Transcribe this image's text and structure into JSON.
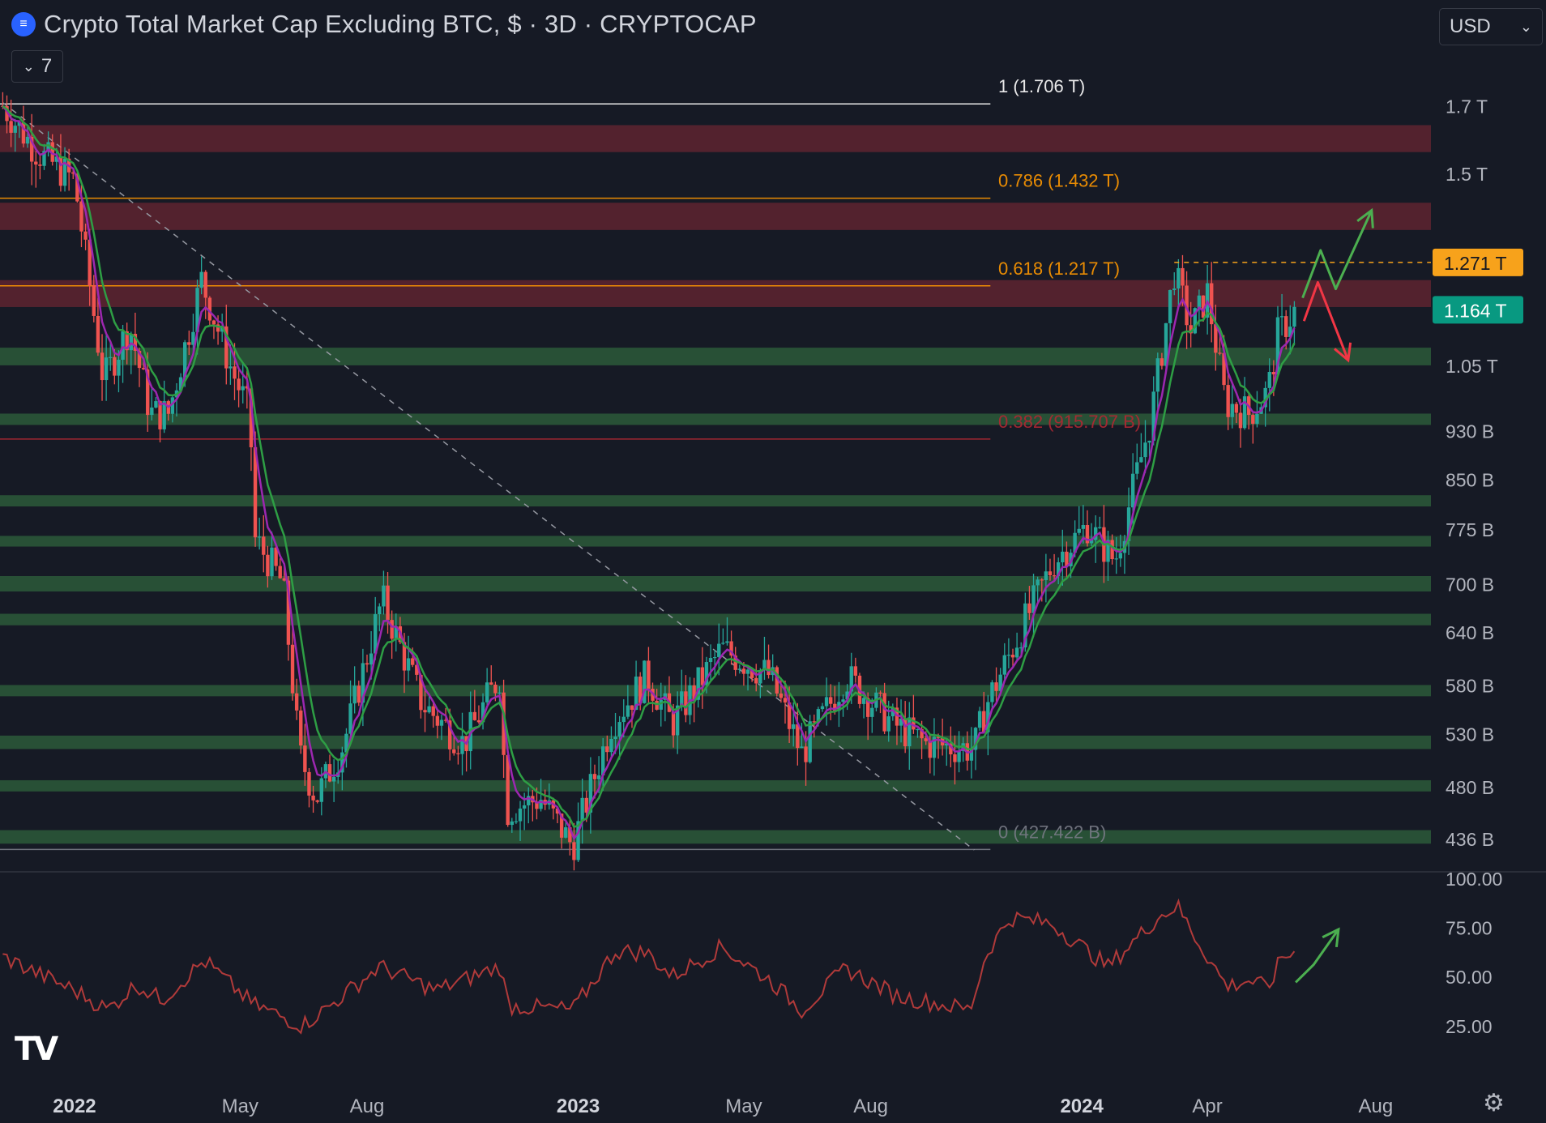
{
  "header": {
    "title": "Crypto Total Market Cap Excluding BTC, $ · 3D · CRYPTOCAP",
    "logo_icon": "crypto-coin-icon",
    "indicator_toggle": "7",
    "currency": "USD"
  },
  "colors": {
    "background": "#161a25",
    "up": "#26a69a",
    "down": "#ef5350",
    "price_tag_current": "#089981",
    "price_tag_level": "#f7a21b",
    "support_zone": "#2b5a3a",
    "resistance_zone": "#5e2530",
    "ema_fast": "#9c27b0",
    "ema_slow": "#2e9e44",
    "rsi": "#b03a3a"
  },
  "chart_data": [
    {
      "type": "candlestick",
      "title": "Crypto Total Market Cap Excluding BTC",
      "interval": "3D",
      "y_scale": "log",
      "ylim": [
        420000000000,
        1780000000000
      ],
      "y_ticks": [
        {
          "label": "1.7 T",
          "value": 1700000000000
        },
        {
          "label": "1.5 T",
          "value": 1500000000000
        },
        {
          "label": "1.05 T",
          "value": 1050000000000
        },
        {
          "label": "930 B",
          "value": 930000000000
        },
        {
          "label": "850 B",
          "value": 850000000000
        },
        {
          "label": "775 B",
          "value": 775000000000
        },
        {
          "label": "700 B",
          "value": 700000000000
        },
        {
          "label": "640 B",
          "value": 640000000000
        },
        {
          "label": "580 B",
          "value": 580000000000
        },
        {
          "label": "530 B",
          "value": 530000000000
        },
        {
          "label": "480 B",
          "value": 480000000000
        },
        {
          "label": "436 B",
          "value": 436000000000
        }
      ],
      "x_ticks": [
        {
          "label": "2022",
          "date": "2022-01-01",
          "major": true
        },
        {
          "label": "May",
          "date": "2022-05-01"
        },
        {
          "label": "Aug",
          "date": "2022-08-01"
        },
        {
          "label": "2023",
          "date": "2023-01-01",
          "major": true
        },
        {
          "label": "May",
          "date": "2023-05-01"
        },
        {
          "label": "Aug",
          "date": "2023-08-01"
        },
        {
          "label": "2024",
          "date": "2024-01-01",
          "major": true
        },
        {
          "label": "Apr",
          "date": "2024-04-01"
        },
        {
          "label": "Aug",
          "date": "2024-08-01"
        }
      ],
      "xlim": [
        "2021-11-08",
        "2024-09-10"
      ],
      "price_path": [
        {
          "date": "2021-11-10",
          "value": 1700000000000
        },
        {
          "date": "2021-12-05",
          "value": 1560000000000
        },
        {
          "date": "2022-01-01",
          "value": 1480000000000
        },
        {
          "date": "2022-01-22",
          "value": 1020000000000
        },
        {
          "date": "2022-02-10",
          "value": 1130000000000
        },
        {
          "date": "2022-02-25",
          "value": 960000000000
        },
        {
          "date": "2022-03-10",
          "value": 960000000000
        },
        {
          "date": "2022-04-03",
          "value": 1230000000000
        },
        {
          "date": "2022-04-25",
          "value": 1040000000000
        },
        {
          "date": "2022-05-08",
          "value": 960000000000
        },
        {
          "date": "2022-05-12",
          "value": 760000000000
        },
        {
          "date": "2022-06-01",
          "value": 700000000000
        },
        {
          "date": "2022-06-13",
          "value": 510000000000
        },
        {
          "date": "2022-06-25",
          "value": 470000000000
        },
        {
          "date": "2022-07-15",
          "value": 520000000000
        },
        {
          "date": "2022-08-12",
          "value": 680000000000
        },
        {
          "date": "2022-09-10",
          "value": 560000000000
        },
        {
          "date": "2022-10-10",
          "value": 520000000000
        },
        {
          "date": "2022-11-05",
          "value": 590000000000
        },
        {
          "date": "2022-11-10",
          "value": 460000000000
        },
        {
          "date": "2022-12-05",
          "value": 470000000000
        },
        {
          "date": "2022-12-28",
          "value": 430000000000
        },
        {
          "date": "2023-01-25",
          "value": 540000000000
        },
        {
          "date": "2023-02-20",
          "value": 590000000000
        },
        {
          "date": "2023-03-10",
          "value": 540000000000
        },
        {
          "date": "2023-04-15",
          "value": 620000000000
        },
        {
          "date": "2023-05-20",
          "value": 590000000000
        },
        {
          "date": "2023-06-12",
          "value": 510000000000
        },
        {
          "date": "2023-07-14",
          "value": 590000000000
        },
        {
          "date": "2023-08-17",
          "value": 540000000000
        },
        {
          "date": "2023-09-10",
          "value": 520000000000
        },
        {
          "date": "2023-10-15",
          "value": 515000000000
        },
        {
          "date": "2023-10-24",
          "value": 560000000000
        },
        {
          "date": "2023-11-20",
          "value": 650000000000
        },
        {
          "date": "2023-12-12",
          "value": 730000000000
        },
        {
          "date": "2024-01-05",
          "value": 780000000000
        },
        {
          "date": "2024-01-25",
          "value": 730000000000
        },
        {
          "date": "2024-02-20",
          "value": 950000000000
        },
        {
          "date": "2024-03-08",
          "value": 1250000000000
        },
        {
          "date": "2024-03-20",
          "value": 1120000000000
        },
        {
          "date": "2024-04-01",
          "value": 1200000000000
        },
        {
          "date": "2024-04-14",
          "value": 980000000000
        },
        {
          "date": "2024-05-01",
          "value": 960000000000
        },
        {
          "date": "2024-05-15",
          "value": 1000000000000
        },
        {
          "date": "2024-05-22",
          "value": 1110000000000
        },
        {
          "date": "2024-06-04",
          "value": 1164000000000
        }
      ],
      "moving_averages": [
        "ema_fast",
        "ema_slow"
      ],
      "fibonacci": [
        {
          "label": "1 (1.706 T)",
          "value": 1706000000000,
          "color": "#ffffff"
        },
        {
          "label": "0.786 (1.432 T)",
          "value": 1432000000000,
          "color": "#ff9800"
        },
        {
          "label": "0.618 (1.217 T)",
          "value": 1217000000000,
          "color": "#ff9800"
        },
        {
          "label": "0.382 (915.707 B)",
          "value": 915707000000,
          "color": "#b22833"
        },
        {
          "label": "0 (427.422 B)",
          "value": 427422000000,
          "color": "#787b86"
        }
      ],
      "fib_range": {
        "start": "2021-11-08",
        "end": "2023-10-15"
      },
      "resistance_zones": [
        [
          1560000000000,
          1640000000000
        ],
        [
          1350000000000,
          1420000000000
        ],
        [
          1170000000000,
          1230000000000
        ]
      ],
      "support_zones": [
        [
          1050000000000,
          1085000000000
        ],
        [
          940000000000,
          960000000000
        ],
        [
          808000000000,
          825000000000
        ],
        [
          750000000000,
          765000000000
        ],
        [
          690000000000,
          710000000000
        ],
        [
          648000000000,
          662000000000
        ],
        [
          568000000000,
          580000000000
        ],
        [
          515000000000,
          528000000000
        ],
        [
          476000000000,
          486000000000
        ],
        [
          432000000000,
          443000000000
        ]
      ],
      "trendline": {
        "from": {
          "date": "2021-11-10",
          "value": 1710000000000
        },
        "to": {
          "date": "2023-10-15",
          "value": 427000000000
        }
      },
      "price_tags": [
        {
          "label": "1.271 T",
          "value": 1271000000000,
          "kind": "level",
          "from_date": "2024-03-08"
        },
        {
          "label": "1.164 T",
          "value": 1164000000000,
          "kind": "current"
        }
      ],
      "projection": {
        "bullish": [
          {
            "date": "2024-06-09",
            "value": 1190000000000
          },
          {
            "date": "2024-06-22",
            "value": 1300000000000
          },
          {
            "date": "2024-07-03",
            "value": 1210000000000
          },
          {
            "date": "2024-07-29",
            "value": 1400000000000
          }
        ],
        "bearish": [
          {
            "date": "2024-06-10",
            "value": 1140000000000
          },
          {
            "date": "2024-06-20",
            "value": 1225000000000
          },
          {
            "date": "2024-07-12",
            "value": 1060000000000
          }
        ]
      }
    },
    {
      "type": "line",
      "indicator": "RSI",
      "ylim": [
        15,
        100
      ],
      "y_ticks": [
        {
          "label": "100.00",
          "value": 100
        },
        {
          "label": "75.00",
          "value": 75
        },
        {
          "label": "50.00",
          "value": 50
        },
        {
          "label": "25.00",
          "value": 25
        }
      ],
      "points": [
        {
          "date": "2021-11-10",
          "value": 60
        },
        {
          "date": "2021-12-10",
          "value": 50
        },
        {
          "date": "2022-01-01",
          "value": 43
        },
        {
          "date": "2022-01-25",
          "value": 33
        },
        {
          "date": "2022-02-15",
          "value": 46
        },
        {
          "date": "2022-03-05",
          "value": 38
        },
        {
          "date": "2022-04-05",
          "value": 58
        },
        {
          "date": "2022-05-10",
          "value": 36
        },
        {
          "date": "2022-06-15",
          "value": 25
        },
        {
          "date": "2022-07-05",
          "value": 35
        },
        {
          "date": "2022-08-10",
          "value": 55
        },
        {
          "date": "2022-09-20",
          "value": 43
        },
        {
          "date": "2022-11-05",
          "value": 55
        },
        {
          "date": "2022-11-12",
          "value": 35
        },
        {
          "date": "2022-12-28",
          "value": 33
        },
        {
          "date": "2023-01-28",
          "value": 63
        },
        {
          "date": "2023-02-20",
          "value": 62
        },
        {
          "date": "2023-03-10",
          "value": 50
        },
        {
          "date": "2023-04-15",
          "value": 65
        },
        {
          "date": "2023-05-20",
          "value": 48
        },
        {
          "date": "2023-06-12",
          "value": 33
        },
        {
          "date": "2023-07-14",
          "value": 54
        },
        {
          "date": "2023-08-20",
          "value": 40
        },
        {
          "date": "2023-10-12",
          "value": 33
        },
        {
          "date": "2023-10-24",
          "value": 62
        },
        {
          "date": "2023-11-10",
          "value": 80
        },
        {
          "date": "2023-12-10",
          "value": 77
        },
        {
          "date": "2024-01-20",
          "value": 55
        },
        {
          "date": "2024-02-25",
          "value": 80
        },
        {
          "date": "2024-03-10",
          "value": 86
        },
        {
          "date": "2024-03-25",
          "value": 68
        },
        {
          "date": "2024-04-15",
          "value": 45
        },
        {
          "date": "2024-05-01",
          "value": 48
        },
        {
          "date": "2024-05-15",
          "value": 44
        },
        {
          "date": "2024-05-25",
          "value": 60
        },
        {
          "date": "2024-06-04",
          "value": 62
        }
      ],
      "projection": [
        {
          "date": "2024-06-04",
          "value": 47
        },
        {
          "date": "2024-06-17",
          "value": 56
        },
        {
          "date": "2024-07-05",
          "value": 74
        }
      ]
    }
  ]
}
